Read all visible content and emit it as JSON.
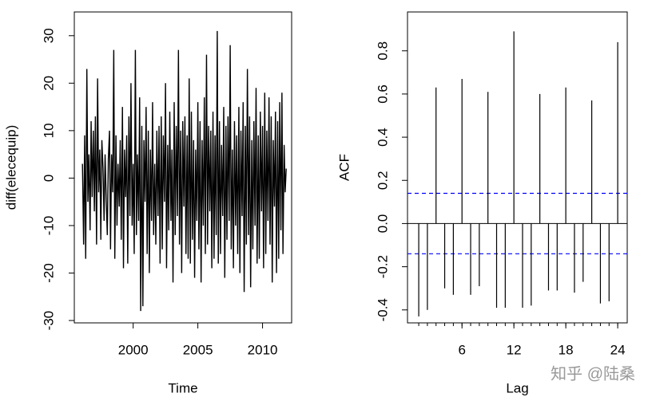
{
  "chart_data": [
    {
      "type": "line",
      "ylabel": "diff(elecequip)",
      "xlabel": "Time",
      "color": "#000000",
      "xlim": [
        1995.45,
        2012.25
      ],
      "xticks": [
        2000,
        2005,
        2010
      ],
      "ylim": [
        -30.5,
        35
      ],
      "yticks": [
        -30,
        -20,
        -10,
        0,
        10,
        20,
        30
      ],
      "x": [
        1996.08,
        1996.17,
        1996.25,
        1996.33,
        1996.42,
        1996.5,
        1996.58,
        1996.67,
        1996.75,
        1996.83,
        1996.92,
        1997,
        1997.08,
        1997.17,
        1997.25,
        1997.33,
        1997.42,
        1997.5,
        1997.58,
        1997.67,
        1997.75,
        1997.83,
        1997.92,
        1998,
        1998.08,
        1998.17,
        1998.25,
        1998.33,
        1998.42,
        1998.5,
        1998.58,
        1998.67,
        1998.75,
        1998.83,
        1998.92,
        1999,
        1999.08,
        1999.17,
        1999.25,
        1999.33,
        1999.42,
        1999.5,
        1999.58,
        1999.67,
        1999.75,
        1999.83,
        1999.92,
        2000,
        2000.08,
        2000.17,
        2000.25,
        2000.33,
        2000.42,
        2000.5,
        2000.58,
        2000.67,
        2000.75,
        2000.83,
        2000.92,
        2001,
        2001.08,
        2001.17,
        2001.25,
        2001.33,
        2001.42,
        2001.5,
        2001.58,
        2001.67,
        2001.75,
        2001.83,
        2001.92,
        2002,
        2002.08,
        2002.17,
        2002.25,
        2002.33,
        2002.42,
        2002.5,
        2002.58,
        2002.67,
        2002.75,
        2002.83,
        2002.92,
        2003,
        2003.08,
        2003.17,
        2003.25,
        2003.33,
        2003.42,
        2003.5,
        2003.58,
        2003.67,
        2003.75,
        2003.83,
        2003.92,
        2004,
        2004.08,
        2004.17,
        2004.25,
        2004.33,
        2004.42,
        2004.5,
        2004.58,
        2004.67,
        2004.75,
        2004.83,
        2004.92,
        2005,
        2005.08,
        2005.17,
        2005.25,
        2005.33,
        2005.42,
        2005.5,
        2005.58,
        2005.67,
        2005.75,
        2005.83,
        2005.92,
        2006,
        2006.08,
        2006.17,
        2006.25,
        2006.33,
        2006.42,
        2006.5,
        2006.58,
        2006.67,
        2006.75,
        2006.83,
        2006.92,
        2007,
        2007.08,
        2007.17,
        2007.25,
        2007.33,
        2007.42,
        2007.5,
        2007.58,
        2007.67,
        2007.75,
        2007.83,
        2007.92,
        2008,
        2008.08,
        2008.17,
        2008.25,
        2008.33,
        2008.42,
        2008.5,
        2008.58,
        2008.67,
        2008.75,
        2008.83,
        2008.92,
        2009,
        2009.08,
        2009.17,
        2009.25,
        2009.33,
        2009.42,
        2009.5,
        2009.58,
        2009.67,
        2009.75,
        2009.83,
        2009.92,
        2010,
        2010.08,
        2010.17,
        2010.25,
        2010.33,
        2010.42,
        2010.5,
        2010.58,
        2010.67,
        2010.75,
        2010.83,
        2010.92,
        2011,
        2011.08,
        2011.17,
        2011.25,
        2011.33,
        2011.42,
        2011.5,
        2011.58,
        2011.67,
        2011.75,
        2011.83
      ],
      "values": [
        3,
        -14,
        9,
        -17,
        23,
        -5,
        5,
        -11,
        12,
        -4,
        10,
        -7,
        13,
        -14,
        21,
        -3,
        6,
        -13,
        8,
        2,
        -9,
        5,
        -5,
        -12,
        4,
        10,
        -15,
        5,
        -3,
        27,
        -17,
        9,
        -10,
        3,
        -6,
        8,
        -13,
        15,
        -19,
        6,
        -4,
        9,
        -18,
        13,
        -8,
        20,
        -10,
        3,
        -16,
        27,
        -12,
        5,
        -9,
        17,
        -28,
        11,
        -27,
        8,
        -5,
        15,
        -16,
        10,
        -20,
        6,
        -9,
        16,
        -12,
        3,
        -14,
        10,
        -8,
        11,
        -18,
        13,
        -15,
        9,
        -5,
        20,
        -19,
        7,
        -11,
        14,
        -9,
        6,
        -22,
        16,
        -12,
        11,
        -8,
        27,
        -14,
        10,
        -20,
        12,
        -6,
        13,
        -16,
        9,
        -17,
        21,
        -18,
        14,
        -13,
        8,
        -21,
        6,
        -9,
        16,
        -15,
        12,
        -22,
        8,
        -10,
        17,
        -16,
        26,
        -14,
        11,
        -7,
        10,
        -19,
        14,
        -17,
        9,
        -12,
        31,
        -18,
        12,
        -16,
        7,
        -8,
        15,
        -21,
        11,
        -13,
        13,
        -9,
        28,
        -15,
        6,
        -19,
        12,
        -10,
        9,
        -16,
        15,
        -20,
        10,
        -8,
        16,
        -24,
        11,
        -14,
        23,
        -12,
        13,
        -23,
        8,
        -15,
        12,
        -10,
        19,
        -18,
        9,
        -17,
        14,
        -7,
        11,
        -19,
        18,
        -16,
        10,
        -9,
        17,
        -14,
        13,
        -22,
        8,
        -6,
        14,
        -20,
        12,
        -17,
        16,
        -11,
        18,
        -16,
        7,
        -3,
        2
      ]
    },
    {
      "type": "acf",
      "ylabel": "ACF",
      "xlabel": "Lag",
      "color": "#000000",
      "xlim": [
        -0.3,
        25.1
      ],
      "xticks": [
        6,
        12,
        18,
        24
      ],
      "ylim": [
        -0.46,
        0.98
      ],
      "yticks": [
        -0.4,
        -0.2,
        {
          "value": 0,
          "label": "0.0"
        },
        0.2,
        0.4,
        0.6,
        0.8
      ],
      "x": [
        1,
        2,
        3,
        4,
        5,
        6,
        7,
        8,
        9,
        10,
        11,
        12,
        13,
        14,
        15,
        16,
        17,
        18,
        19,
        20,
        21,
        22,
        23,
        24
      ],
      "values": [
        -0.43,
        -0.4,
        0.63,
        -0.3,
        -0.33,
        0.67,
        -0.33,
        -0.29,
        0.61,
        -0.39,
        -0.39,
        0.89,
        -0.39,
        -0.38,
        0.6,
        -0.31,
        -0.31,
        0.63,
        -0.32,
        -0.27,
        0.57,
        -0.37,
        -0.36,
        0.84
      ],
      "ci_bounds": [
        -0.14,
        0.14
      ],
      "ci_color": "#0000ff"
    }
  ],
  "watermark": "知乎 @陆桑"
}
